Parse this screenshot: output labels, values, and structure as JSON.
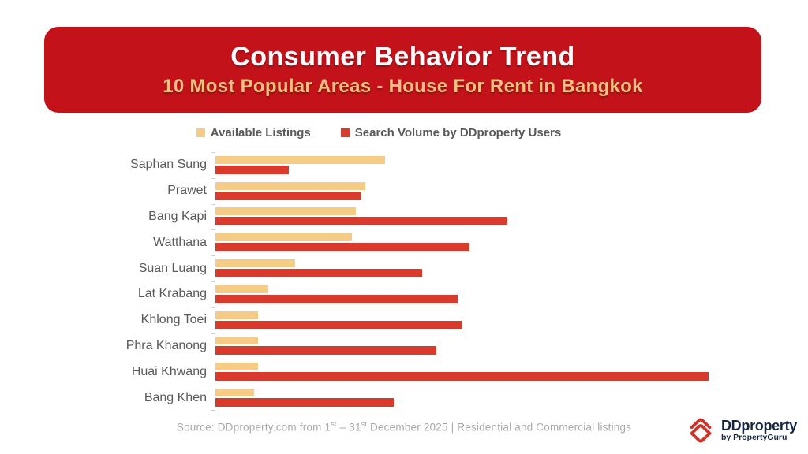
{
  "header": {
    "title": "Consumer Behavior Trend",
    "subtitle": "10 Most Popular Areas - House For Rent in Bangkok",
    "bg_color": "#C4121A",
    "title_color": "#FFFFFF",
    "subtitle_color": "#F2C080"
  },
  "legend": {
    "items": [
      {
        "label": "Available Listings",
        "color": "#F5CB85"
      },
      {
        "label": "Search Volume by DDproperty Users",
        "color": "#D93A2B"
      }
    ]
  },
  "chart_data": {
    "type": "bar",
    "orientation": "horizontal",
    "title": "Consumer Behavior Trend — 10 Most Popular Areas - House For Rent in Bangkok",
    "categories": [
      "Saphan Sung",
      "Prawet",
      "Bang Kapi",
      "Watthana",
      "Suan Luang",
      "Lat Krabang",
      "Khlong Toei",
      "Phra Khanong",
      "Huai Khwang",
      "Bang Khen"
    ],
    "series": [
      {
        "name": "Available Listings",
        "color": "#F5CB85",
        "values": [
          34.5,
          30.4,
          28.5,
          27.7,
          16.1,
          10.7,
          8.6,
          8.6,
          8.6,
          7.8
        ]
      },
      {
        "name": "Search Volume by DDproperty Users",
        "color": "#D93A2B",
        "values": [
          14.9,
          29.6,
          59.3,
          51.5,
          42.0,
          49.1,
          50.1,
          44.8,
          100.0,
          36.2
        ]
      }
    ],
    "xlabel": "",
    "ylabel": "",
    "xlim": [
      0,
      110
    ],
    "value_axis_labels": false,
    "grid": false,
    "legend_position": "top",
    "units": "relative index (no numeric axis shown; max search volume = 100)"
  },
  "source": {
    "prefix": "Source: DDproperty.com from 1",
    "sup1": "st",
    "mid": "  – 31",
    "sup2": "st",
    "suffix": " December 2025 | Residential and Commercial listings"
  },
  "logo": {
    "name": "DDproperty",
    "byline": "by PropertyGuru",
    "icon_color": "#D23127",
    "text_color": "#152642"
  }
}
